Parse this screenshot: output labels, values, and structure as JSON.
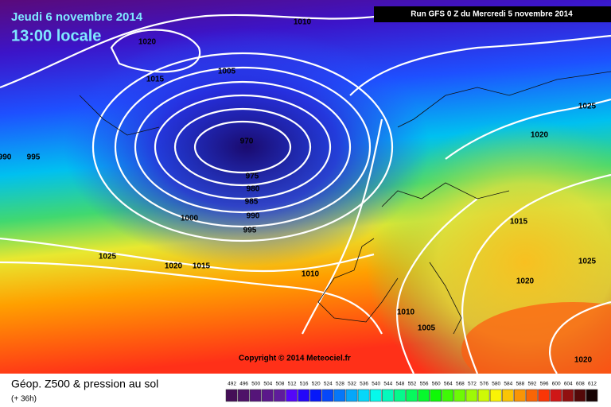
{
  "header": {
    "date": "Jeudi 6 novembre 2014",
    "time": "13:00 locale",
    "run": "Run GFS 0 Z du Mercredi 5 novembre 2014"
  },
  "copyright": "Copyright © 2014 Meteociel.fr",
  "footer": {
    "title": "Géop. Z500 & pression au sol",
    "lead": "(+ 36h)"
  },
  "legend": {
    "labels": [
      "492",
      "496",
      "500",
      "504",
      "508",
      "512",
      "516",
      "520",
      "524",
      "528",
      "532",
      "536",
      "540",
      "544",
      "548",
      "552",
      "556",
      "560",
      "564",
      "568",
      "572",
      "576",
      "580",
      "584",
      "588",
      "592",
      "596",
      "600",
      "604",
      "608",
      "612"
    ]
  },
  "isobars": [
    "1010",
    "1020",
    "1005",
    "1015",
    "970",
    "975",
    "980",
    "985",
    "990",
    "995",
    "1000",
    "990",
    "995",
    "1025",
    "1020",
    "1015",
    "1010",
    "1025",
    "1020",
    "1015",
    "1025",
    "1020",
    "1010",
    "1005",
    "1020"
  ]
}
